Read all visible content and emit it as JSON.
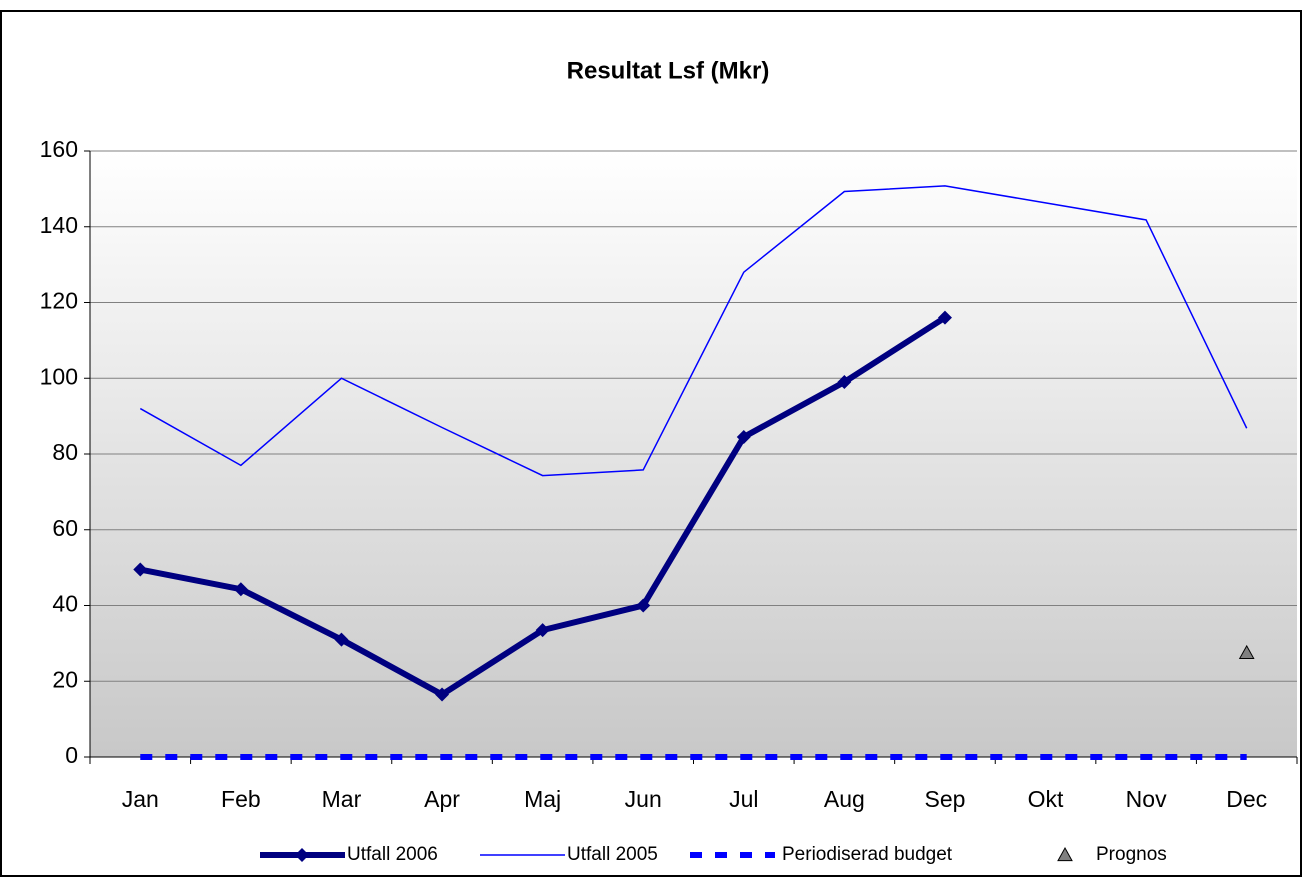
{
  "chart_data": {
    "type": "line",
    "title": "Resultat Lsf (Mkr)",
    "categories": [
      "Jan",
      "Feb",
      "Mar",
      "Apr",
      "Maj",
      "Jun",
      "Jul",
      "Aug",
      "Sep",
      "Okt",
      "Nov",
      "Dec"
    ],
    "series": [
      {
        "name": "Utfall 2006",
        "color": "#000080",
        "style": "thick-diamond",
        "values": [
          49.5,
          44.3,
          31,
          16.5,
          33.5,
          40,
          84.5,
          99,
          116,
          null,
          null,
          null
        ]
      },
      {
        "name": "Utfall 2005",
        "color": "#0000ff",
        "style": "thin",
        "values": [
          92,
          77,
          100,
          87,
          74.3,
          75.8,
          128,
          149.3,
          150.8,
          146.3,
          141.8,
          86.8
        ]
      },
      {
        "name": "Periodiserad budget",
        "color": "#0000ff",
        "style": "dashed",
        "values": [
          0,
          0,
          0,
          0,
          0,
          0,
          0,
          0,
          0,
          0,
          0,
          0
        ]
      },
      {
        "name": "Prognos",
        "color": "#808080",
        "style": "triangle",
        "values": [
          null,
          null,
          null,
          null,
          null,
          null,
          null,
          null,
          null,
          null,
          null,
          27.5
        ]
      }
    ],
    "ylim": [
      0,
      160
    ],
    "yticks": [
      0,
      20,
      40,
      60,
      80,
      100,
      120,
      140,
      160
    ],
    "grid": true
  }
}
